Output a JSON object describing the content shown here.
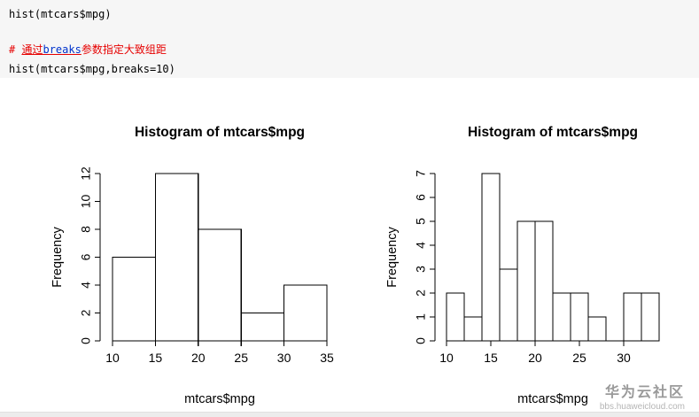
{
  "code": {
    "line1": "hist(mtcars$mpg)",
    "comment_hash": "# ",
    "comment_part1": "通过",
    "comment_breaks": "breaks",
    "comment_part2": "参数指定大致组距",
    "line3": "hist(mtcars$mpg,breaks=10)",
    "comment_color": "#e60000",
    "keyword_color": "#0033cc",
    "code_background": "#f6f6f6"
  },
  "watermark": {
    "title": "华为云社区",
    "url": "bbs.huaweicloud.com"
  },
  "chart_data": [
    {
      "type": "bar",
      "title": "Histogram of mtcars$mpg",
      "xlabel": "mtcars$mpg",
      "ylabel": "Frequency",
      "bin_start": 10,
      "bin_width": 5,
      "values": [
        6,
        12,
        8,
        2,
        4
      ],
      "xlim": [
        10,
        35
      ],
      "ylim": [
        0,
        12
      ],
      "xticks": [
        10,
        15,
        20,
        25,
        30,
        35
      ],
      "yticks": [
        0,
        2,
        4,
        6,
        8,
        10,
        12
      ],
      "grid": false,
      "bar_fill": "#ffffff",
      "bar_stroke": "#000000"
    },
    {
      "type": "bar",
      "title": "Histogram of mtcars$mpg",
      "xlabel": "mtcars$mpg",
      "ylabel": "Frequency",
      "bin_start": 10,
      "bin_width": 2,
      "values": [
        2,
        1,
        7,
        3,
        5,
        5,
        2,
        2,
        1,
        0,
        2,
        2
      ],
      "xlim": [
        10,
        34
      ],
      "ylim": [
        0,
        7
      ],
      "xticks": [
        10,
        15,
        20,
        25,
        30
      ],
      "yticks": [
        0,
        1,
        2,
        3,
        4,
        5,
        6,
        7
      ],
      "grid": false,
      "bar_fill": "#ffffff",
      "bar_stroke": "#000000"
    }
  ]
}
